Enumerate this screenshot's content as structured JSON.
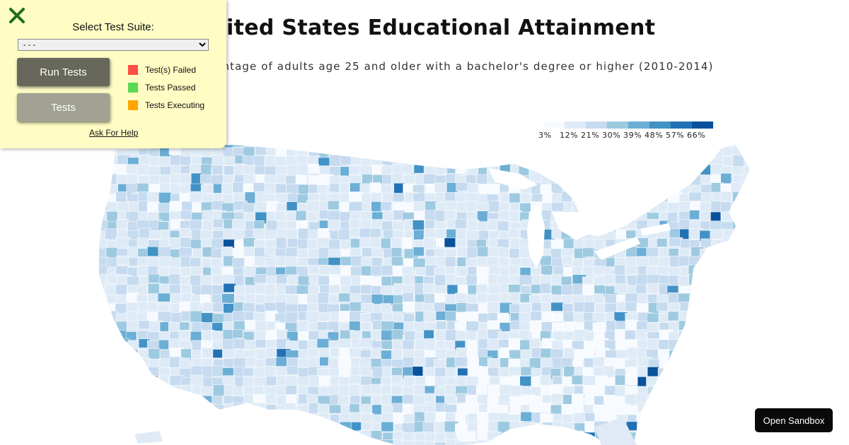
{
  "title": "United States Educational Attainment",
  "description": "Percentage of adults age 25 and older with a bachelor's degree or higher (2010-2014)",
  "legend": {
    "ticks": [
      "3%",
      "12%",
      "21%",
      "30%",
      "39%",
      "48%",
      "57%",
      "66%"
    ],
    "colors": [
      "#f7fbff",
      "#deebf7",
      "#c6dbef",
      "#9ecae1",
      "#6baed6",
      "#4292c6",
      "#2171b5",
      "#08519c"
    ]
  },
  "test_panel": {
    "suite_label": "Select Test Suite:",
    "suite_selected": "- - -",
    "run_label": "Run Tests",
    "tests_label": "Tests",
    "status": [
      {
        "label": "Test(s) Failed",
        "color": "#ff4e42"
      },
      {
        "label": "Tests Passed",
        "color": "#5dd852"
      },
      {
        "label": "Tests Executing",
        "color": "#ffa500"
      }
    ],
    "help_label": "Ask For Help"
  },
  "sandbox_label": "Open Sandbox",
  "icons": {
    "close": "close-icon"
  }
}
